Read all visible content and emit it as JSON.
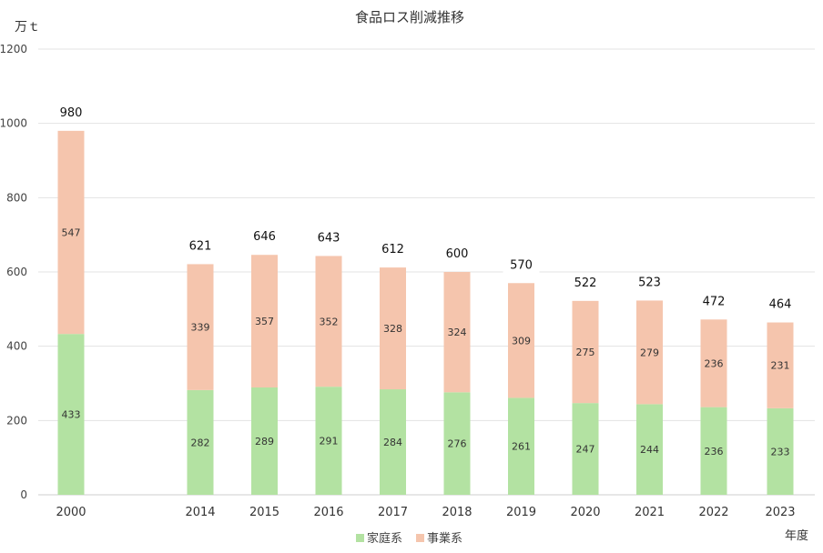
{
  "chart_data": {
    "type": "bar",
    "stacked": true,
    "title": "食品ロス削減推移",
    "ylabel": "万ｔ",
    "xlabel": "年度",
    "ylim": [
      0,
      1200
    ],
    "yticks": [
      0,
      200,
      400,
      600,
      800,
      1000,
      1200
    ],
    "grid": true,
    "legend_position": "bottom",
    "categories": [
      "2000",
      "2014",
      "2015",
      "2016",
      "2017",
      "2018",
      "2019",
      "2020",
      "2021",
      "2022",
      "2023"
    ],
    "series": [
      {
        "name": "家庭系",
        "color": "#b3e2a2",
        "values": [
          433,
          282,
          289,
          291,
          284,
          276,
          261,
          247,
          244,
          236,
          233
        ]
      },
      {
        "name": "事業系",
        "color": "#f5c5ad",
        "values": [
          547,
          339,
          357,
          352,
          328,
          324,
          309,
          275,
          279,
          236,
          231
        ]
      }
    ],
    "totals": [
      980,
      621,
      646,
      643,
      612,
      600,
      570,
      522,
      523,
      472,
      464
    ]
  }
}
